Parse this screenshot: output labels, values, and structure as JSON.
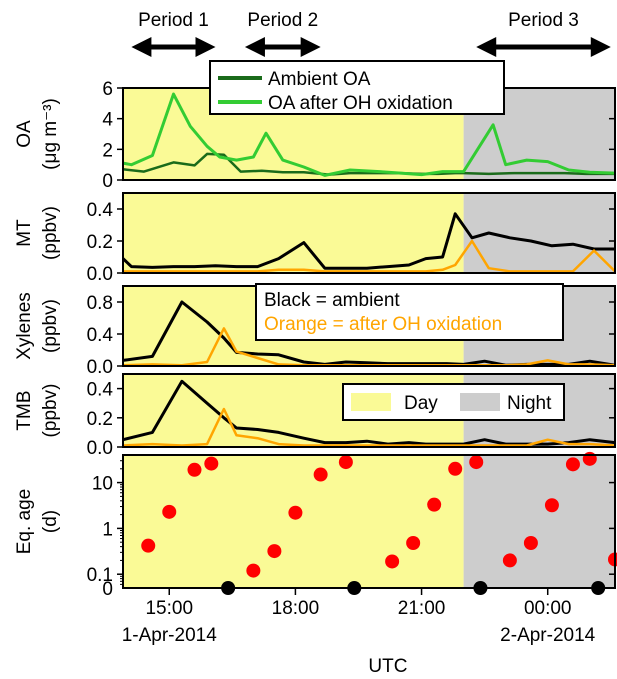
{
  "chart_data": {
    "type": "line",
    "x_axis": {
      "label": "UTC",
      "ticks": [
        {
          "hour": 15,
          "label": "15:00",
          "date": "1-Apr-2014"
        },
        {
          "hour": 18,
          "label": "18:00",
          "date": ""
        },
        {
          "hour": 21,
          "label": "21:00",
          "date": ""
        },
        {
          "hour": 24,
          "label": "00:00",
          "date": "2-Apr-2014"
        }
      ],
      "range_hours": [
        13.9,
        25.6
      ],
      "note": "hours are hours since 00:00 UTC on 1-Apr-2014"
    },
    "periods": [
      {
        "label": "Period 1",
        "start": 14.1,
        "end": 16.1
      },
      {
        "label": "Period 2",
        "start": 16.8,
        "end": 18.6
      },
      {
        "label": "Period 3",
        "start": 22.3,
        "end": 25.5
      }
    ],
    "shading": {
      "day": {
        "label": "Day",
        "start": 13.9,
        "end": 22.0,
        "color": "#fafa96"
      },
      "night": {
        "label": "Night",
        "start": 22.0,
        "end": 25.6,
        "color": "#cdcdcd"
      }
    },
    "colors": {
      "ambient_oa": "#1a6b1a",
      "ox_oa": "#33cc33",
      "ambient": "#000000",
      "oxidized": "#ffa500",
      "marker": "#ff0000"
    },
    "panels": [
      {
        "id": "oa",
        "ylabel": [
          "OA",
          "(μg m⁻³)"
        ],
        "ylim": [
          0,
          6
        ],
        "yticks": [
          0,
          2,
          4,
          6
        ],
        "legend": [
          {
            "label": "Ambient OA",
            "color": "#1a6b1a"
          },
          {
            "label": "OA after OH oxidation",
            "color": "#33cc33"
          }
        ],
        "series": [
          {
            "name": "Ambient OA",
            "color": "#1a6b1a",
            "width": 2.5,
            "x": [
              13.9,
              14.4,
              15.1,
              15.6,
              15.9,
              16.3,
              16.7,
              17.2,
              17.7,
              18.2,
              18.8,
              19.3,
              20.0,
              20.5,
              21.0,
              21.4,
              21.8,
              22.0,
              22.6,
              23.2,
              23.8,
              24.4,
              24.9,
              25.6
            ],
            "y": [
              0.7,
              0.55,
              1.15,
              0.95,
              1.7,
              1.65,
              0.55,
              0.6,
              0.5,
              0.5,
              0.35,
              0.45,
              0.45,
              0.45,
              0.4,
              0.4,
              0.45,
              0.45,
              0.4,
              0.45,
              0.45,
              0.45,
              0.4,
              0.4
            ]
          },
          {
            "name": "OA after OH oxidation",
            "color": "#33cc33",
            "width": 3,
            "x": [
              13.9,
              14.1,
              14.6,
              15.1,
              15.5,
              15.9,
              16.2,
              16.6,
              17.0,
              17.3,
              17.7,
              18.2,
              18.7,
              19.3,
              20.0,
              20.5,
              21.0,
              21.5,
              22.0,
              22.7,
              23.0,
              23.5,
              24.0,
              24.5,
              25.0,
              25.6
            ],
            "y": [
              1.1,
              1.0,
              1.6,
              5.6,
              3.5,
              2.2,
              1.5,
              1.3,
              1.5,
              3.05,
              1.3,
              0.85,
              0.3,
              0.65,
              0.55,
              0.45,
              0.35,
              0.55,
              0.55,
              3.6,
              1.0,
              1.3,
              1.2,
              0.65,
              0.5,
              0.45
            ]
          }
        ]
      },
      {
        "id": "mt",
        "ylabel": [
          "MT",
          "(ppbv)"
        ],
        "ylim": [
          0,
          0.5
        ],
        "yticks": [
          0.0,
          0.2,
          0.4
        ],
        "tick_labels": [
          "0.0",
          "0.2",
          "0.4"
        ],
        "series": [
          {
            "name": "ambient",
            "color": "#000000",
            "width": 3,
            "x": [
              13.9,
              14.1,
              14.6,
              15.1,
              15.6,
              16.1,
              16.6,
              17.1,
              17.6,
              18.2,
              18.7,
              19.2,
              19.7,
              20.2,
              20.7,
              21.1,
              21.5,
              21.8,
              22.2,
              22.6,
              23.1,
              23.6,
              24.1,
              24.6,
              25.1,
              25.6
            ],
            "y": [
              0.09,
              0.04,
              0.035,
              0.04,
              0.04,
              0.045,
              0.04,
              0.04,
              0.09,
              0.19,
              0.03,
              0.03,
              0.03,
              0.04,
              0.05,
              0.09,
              0.1,
              0.37,
              0.22,
              0.25,
              0.22,
              0.2,
              0.17,
              0.18,
              0.15,
              0.15
            ]
          },
          {
            "name": "oxidized",
            "color": "#ffa500",
            "width": 2.5,
            "x": [
              13.9,
              14.6,
              15.1,
              15.6,
              16.1,
              16.6,
              17.1,
              17.6,
              18.2,
              18.7,
              19.2,
              19.7,
              20.2,
              20.7,
              21.1,
              21.5,
              21.8,
              22.2,
              22.6,
              23.1,
              23.6,
              24.1,
              24.6,
              25.1,
              25.6
            ],
            "y": [
              0.01,
              0.01,
              0.01,
              0.01,
              0.01,
              0.01,
              0.01,
              0.02,
              0.02,
              0.01,
              0.01,
              0.01,
              0.01,
              0.01,
              0.01,
              0.02,
              0.05,
              0.2,
              0.03,
              0.01,
              0.01,
              0.01,
              0.01,
              0.14,
              0.01
            ]
          }
        ]
      },
      {
        "id": "xylenes",
        "ylabel": [
          "Xylenes",
          "(ppbv)"
        ],
        "ylim": [
          0,
          1.0
        ],
        "yticks": [
          0.0,
          0.4,
          0.8
        ],
        "tick_labels": [
          "0.0",
          "0.4",
          "0.8"
        ],
        "annotation": [
          {
            "text": "Black = ambient",
            "color": "#000000"
          },
          {
            "text": "Orange = after OH oxidation",
            "color": "#ffa500"
          }
        ],
        "series": [
          {
            "name": "ambient",
            "color": "#000000",
            "width": 3,
            "x": [
              13.9,
              14.6,
              15.3,
              15.9,
              16.3,
              16.6,
              17.1,
              17.6,
              18.2,
              18.7,
              19.2,
              19.7,
              20.2,
              20.7,
              21.1,
              21.6,
              22.0,
              22.5,
              23.0,
              23.5,
              24.0,
              24.5,
              25.0,
              25.6
            ],
            "y": [
              0.07,
              0.12,
              0.8,
              0.55,
              0.35,
              0.17,
              0.15,
              0.14,
              0.05,
              0.02,
              0.05,
              0.04,
              0.03,
              0.03,
              0.03,
              0.03,
              0.02,
              0.06,
              0.01,
              0.02,
              0.02,
              0.02,
              0.06,
              0.01
            ]
          },
          {
            "name": "oxidized",
            "color": "#ffa500",
            "width": 2.5,
            "x": [
              13.9,
              14.6,
              15.3,
              15.9,
              16.3,
              16.6,
              17.1,
              17.6,
              18.2,
              18.7,
              19.2,
              19.7,
              20.2,
              20.7,
              21.1,
              21.6,
              22.0,
              22.5,
              23.0,
              23.5,
              24.0,
              24.5,
              25.0,
              25.6
            ],
            "y": [
              0.01,
              0.02,
              0.01,
              0.05,
              0.47,
              0.18,
              0.1,
              0.02,
              0.01,
              0.01,
              0.01,
              0.01,
              0.01,
              0.01,
              0.01,
              0.01,
              0.01,
              0.01,
              0.01,
              0.02,
              0.07,
              0.02,
              0.02,
              0.01
            ]
          }
        ]
      },
      {
        "id": "tmb",
        "ylabel": [
          "TMB",
          "(ppbv)"
        ],
        "ylim": [
          0,
          0.5
        ],
        "yticks": [
          0.0,
          0.2,
          0.4
        ],
        "tick_labels": [
          "0.0",
          "0.2",
          "0.4"
        ],
        "legend": [
          {
            "label": "Day",
            "color": "#fafa96"
          },
          {
            "label": "Night",
            "color": "#cdcdcd"
          }
        ],
        "series": [
          {
            "name": "ambient",
            "color": "#000000",
            "width": 3,
            "x": [
              13.9,
              14.6,
              15.3,
              15.9,
              16.3,
              16.6,
              17.1,
              17.6,
              18.2,
              18.7,
              19.2,
              19.7,
              20.2,
              20.7,
              21.1,
              21.6,
              22.0,
              22.5,
              23.0,
              23.5,
              24.0,
              24.5,
              25.0,
              25.6
            ],
            "y": [
              0.05,
              0.1,
              0.45,
              0.3,
              0.2,
              0.13,
              0.12,
              0.1,
              0.06,
              0.03,
              0.03,
              0.04,
              0.02,
              0.03,
              0.02,
              0.02,
              0.02,
              0.05,
              0.02,
              0.02,
              0.02,
              0.03,
              0.05,
              0.03
            ]
          },
          {
            "name": "oxidized",
            "color": "#ffa500",
            "width": 2.5,
            "x": [
              13.9,
              14.6,
              15.3,
              15.9,
              16.3,
              16.6,
              17.1,
              17.6,
              18.2,
              18.7,
              19.2,
              19.7,
              20.2,
              20.7,
              21.1,
              21.6,
              22.0,
              22.5,
              23.0,
              23.5,
              24.0,
              24.5,
              25.0,
              25.6
            ],
            "y": [
              0.01,
              0.02,
              0.01,
              0.02,
              0.26,
              0.08,
              0.06,
              0.02,
              0.01,
              0.01,
              0.01,
              0.01,
              0.01,
              0.01,
              0.01,
              0.01,
              0.01,
              0.01,
              0.01,
              0.01,
              0.05,
              0.02,
              0.02,
              0.01
            ]
          }
        ]
      },
      {
        "id": "age",
        "ylabel": [
          "Eq. age",
          "(d)"
        ],
        "scale": "log",
        "ylim": [
          0.05,
          40
        ],
        "yticks": [
          0.1,
          1,
          10
        ],
        "tick_labels": [
          "0.1",
          "1",
          "10"
        ],
        "zero_label": "0",
        "red_points": {
          "x": [
            14.5,
            15.0,
            15.6,
            16.0,
            17.0,
            17.5,
            18.0,
            18.6,
            19.2,
            20.3,
            20.8,
            21.3,
            21.8,
            22.3,
            23.1,
            23.6,
            24.1,
            24.6,
            25.0,
            25.6
          ],
          "y": [
            0.42,
            2.3,
            19,
            26,
            0.12,
            0.32,
            2.2,
            15,
            28,
            0.19,
            0.48,
            3.3,
            20,
            28,
            0.2,
            0.48,
            3.2,
            25,
            33,
            0.21
          ]
        },
        "zero_points": {
          "x": [
            16.4,
            19.4,
            22.4,
            25.2
          ],
          "y": [
            0,
            0,
            0,
            0
          ]
        }
      }
    ]
  }
}
